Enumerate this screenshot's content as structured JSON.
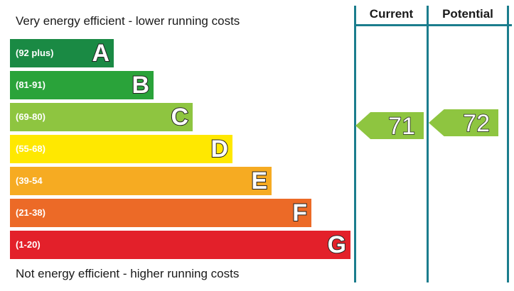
{
  "top_caption": "Very energy efficient - lower running costs",
  "bottom_caption": "Not energy efficient - higher running costs",
  "columns": {
    "current": "Current",
    "potential": "Potential"
  },
  "chart_data": {
    "type": "bar",
    "title": "",
    "categories": [
      "A",
      "B",
      "C",
      "D",
      "E",
      "F",
      "G"
    ],
    "bands": [
      {
        "letter": "A",
        "range": "(92 plus)",
        "color": "#1a8a44"
      },
      {
        "letter": "B",
        "range": "(81-91)",
        "color": "#2aa33a"
      },
      {
        "letter": "C",
        "range": "(69-80)",
        "color": "#8ec540"
      },
      {
        "letter": "D",
        "range": "(55-68)",
        "color": "#ffe800"
      },
      {
        "letter": "E",
        "range": "(39-54",
        "color": "#f6ab22"
      },
      {
        "letter": "F",
        "range": "(21-38)",
        "color": "#ec6a27"
      },
      {
        "letter": "G",
        "range": "(1-20)",
        "color": "#e3202a"
      }
    ],
    "ratings": {
      "current": {
        "value": "71",
        "band": "C",
        "color": "#8ec540"
      },
      "potential": {
        "value": "72",
        "band": "C",
        "color": "#8ec540"
      }
    },
    "accent_color": "#1b7d8d"
  }
}
